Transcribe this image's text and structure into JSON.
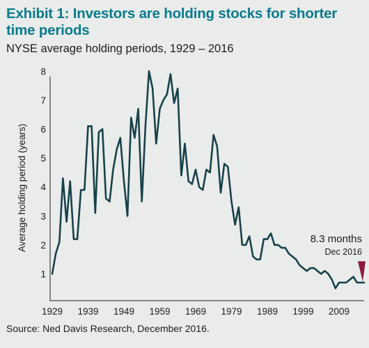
{
  "header": {
    "title": "Exhibit 1: Investors are holding stocks for shorter time periods",
    "subtitle": "NYSE average holding periods, 1929 – 2016"
  },
  "footer": {
    "source": "Source: Ned Davis Research, December 2016."
  },
  "colors": {
    "title": "#0a7a8c",
    "line": "#18414a",
    "marker": "#8a1a3c",
    "background": "#e9ecea"
  },
  "chart_data": {
    "type": "line",
    "title": "",
    "xlabel": "",
    "ylabel": "Average holding period (years)",
    "xlim": [
      1929,
      2016
    ],
    "ylim": [
      0.5,
      8
    ],
    "y_ticks": [
      1,
      2,
      3,
      4,
      5,
      6,
      7,
      8
    ],
    "x_ticks": [
      1929,
      1939,
      1949,
      1959,
      1969,
      1979,
      1989,
      1999,
      2009
    ],
    "grid": false,
    "series": [
      {
        "x": [
          1929,
          1930,
          1931,
          1932,
          1933,
          1934,
          1935,
          1936,
          1937,
          1938,
          1939,
          1940,
          1941,
          1942,
          1943,
          1944,
          1945,
          1946,
          1947,
          1948,
          1949,
          1950,
          1951,
          1952,
          1953,
          1954,
          1955,
          1956,
          1957,
          1958,
          1959,
          1960,
          1961,
          1962,
          1963,
          1964,
          1965,
          1966,
          1967,
          1968,
          1969,
          1970,
          1971,
          1972,
          1973,
          1974,
          1975,
          1976,
          1977,
          1978,
          1979,
          1980,
          1981,
          1982,
          1983,
          1984,
          1985,
          1986,
          1987,
          1988,
          1989,
          1990,
          1991,
          1992,
          1993,
          1994,
          1995,
          1996,
          1997,
          1998,
          1999,
          2000,
          2001,
          2002,
          2003,
          2004,
          2005,
          2006,
          2007,
          2008,
          2009,
          2010,
          2011,
          2012,
          2013,
          2014,
          2015,
          2016
        ],
        "y": [
          1.0,
          1.7,
          2.1,
          4.3,
          2.8,
          4.2,
          2.2,
          2.2,
          3.9,
          3.9,
          6.1,
          6.1,
          3.1,
          5.9,
          6.0,
          3.6,
          3.5,
          4.6,
          5.3,
          5.7,
          4.2,
          3.0,
          6.4,
          5.7,
          6.7,
          3.5,
          6.1,
          8.0,
          7.4,
          5.5,
          6.7,
          7.0,
          7.2,
          7.9,
          6.9,
          7.4,
          4.4,
          5.5,
          4.2,
          4.1,
          4.6,
          4.0,
          3.9,
          4.6,
          4.5,
          5.8,
          5.4,
          3.8,
          4.8,
          4.7,
          3.5,
          2.7,
          3.3,
          2.0,
          2.0,
          2.3,
          1.6,
          1.5,
          1.5,
          2.2,
          2.2,
          2.4,
          2.0,
          2.0,
          1.9,
          1.9,
          1.7,
          1.6,
          1.5,
          1.3,
          1.2,
          1.1,
          1.2,
          1.2,
          1.1,
          1.0,
          1.1,
          1.0,
          0.8,
          0.5,
          0.7,
          0.7,
          0.7,
          0.8,
          0.9,
          0.7,
          0.7,
          0.7
        ]
      }
    ],
    "annotations": [
      {
        "label": "8.3 months",
        "sublabel": "Dec 2016",
        "x": 2016,
        "y": 0.69
      }
    ]
  }
}
